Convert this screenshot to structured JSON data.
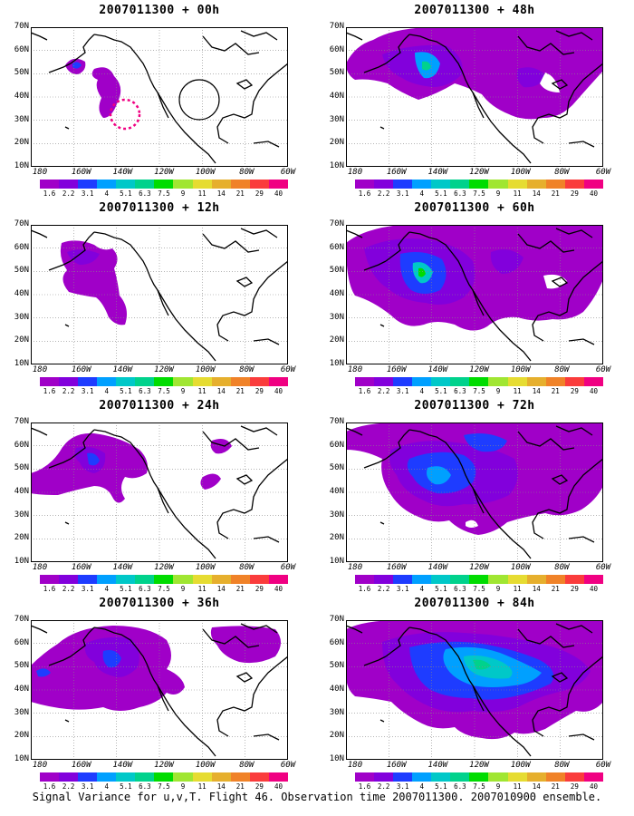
{
  "caption": "Signal Variance for u,v,T. Flight 46. Observation time 2007011300. 2007010900 ensemble.",
  "y_axis_labels": [
    "70N",
    "60N",
    "50N",
    "40N",
    "30N",
    "20N",
    "10N"
  ],
  "x_axis_labels": [
    "180",
    "160W",
    "140W",
    "120W",
    "100W",
    "80W",
    "60W"
  ],
  "colorbar": {
    "labels": [
      "1.6",
      "2.2",
      "3.1",
      "4",
      "5.1",
      "6.3",
      "7.5",
      "9",
      "11",
      "14",
      "21",
      "29",
      "40"
    ],
    "colors": [
      "#a000c8",
      "#8200dc",
      "#1e3cff",
      "#00a0ff",
      "#00c8c8",
      "#00d28c",
      "#00dc00",
      "#a0e632",
      "#e6dc32",
      "#e6af2d",
      "#f08228",
      "#fa3c3c",
      "#f00082"
    ]
  },
  "panels": [
    {
      "title": "2007011300 + 00h",
      "intensity": 0
    },
    {
      "title": "2007011300 + 12h",
      "intensity": 1
    },
    {
      "title": "2007011300 + 24h",
      "intensity": 2
    },
    {
      "title": "2007011300 + 36h",
      "intensity": 3
    },
    {
      "title": "2007011300 + 48h",
      "intensity": 4
    },
    {
      "title": "2007011300 + 60h",
      "intensity": 5
    },
    {
      "title": "2007011300 + 72h",
      "intensity": 6
    },
    {
      "title": "2007011300 + 84h",
      "intensity": 7
    }
  ]
}
